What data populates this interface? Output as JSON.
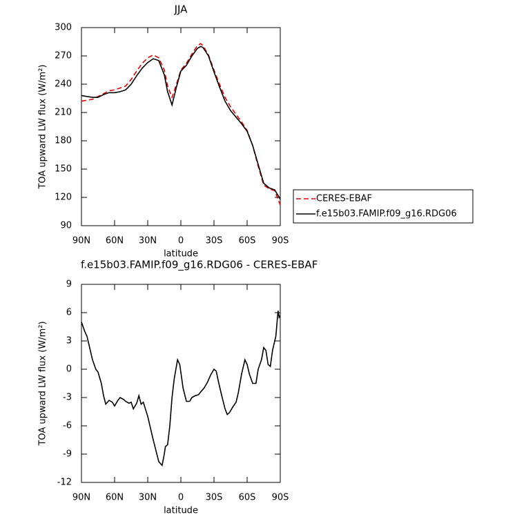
{
  "chart_data": [
    {
      "type": "line",
      "title": "JJA",
      "xlabel": "latitude",
      "ylabel": "TOA upward LW flux (W/m²)",
      "x": [
        90,
        85,
        80,
        75,
        70,
        65,
        60,
        55,
        50,
        45,
        40,
        35,
        30,
        25,
        20,
        15,
        12,
        8,
        4,
        0,
        -5,
        -10,
        -15,
        -18,
        -20,
        -25,
        -30,
        -35,
        -40,
        -45,
        -50,
        -55,
        -60,
        -65,
        -70,
        -75,
        -80,
        -85,
        -90
      ],
      "xlim": [
        90,
        -90
      ],
      "xticks": [
        {
          "value": 90,
          "label": "90N"
        },
        {
          "value": 60,
          "label": "60N"
        },
        {
          "value": 30,
          "label": "30N"
        },
        0,
        {
          "value": -30,
          "label": "30S"
        },
        {
          "value": -60,
          "label": "60S"
        },
        {
          "value": -90,
          "label": "90S"
        }
      ],
      "ylim": [
        90,
        300
      ],
      "yticks": [
        90,
        120,
        150,
        180,
        210,
        240,
        270,
        300
      ],
      "legend": "right",
      "series": [
        {
          "name": "CERES-EBAF",
          "color": "#e00000",
          "dash": true,
          "values": [
            222,
            223,
            224,
            227,
            230,
            233,
            234,
            236,
            238,
            245,
            254,
            262,
            268,
            271,
            268,
            255,
            238,
            226,
            240,
            255,
            262,
            272,
            281,
            283,
            281,
            271,
            255,
            240,
            226,
            216,
            208,
            200,
            191,
            175,
            153,
            133,
            129,
            127,
            112
          ]
        },
        {
          "name": "f.e15b03.FAMIP.f09_g16.RDG06",
          "color": "#000000",
          "dash": false,
          "values": [
            228,
            227,
            226,
            226,
            229,
            231,
            231,
            232,
            234,
            240,
            249,
            257,
            263,
            267,
            265,
            250,
            232,
            218,
            237,
            254,
            260,
            270,
            278,
            280,
            279,
            270,
            253,
            237,
            222,
            212,
            205,
            198,
            190,
            175,
            155,
            135,
            130,
            128,
            118
          ]
        }
      ]
    },
    {
      "type": "line",
      "title": "f.e15b03.FAMIP.f09_g16.RDG06 - CERES-EBAF",
      "xlabel": "latitude",
      "ylabel": "TOA upward LW flux (W/m²)",
      "x": [
        90,
        87,
        85,
        82,
        80,
        77,
        75,
        72,
        70,
        68,
        65,
        62,
        60,
        57,
        55,
        52,
        50,
        47,
        45,
        43,
        40,
        38,
        36,
        34,
        30,
        25,
        20,
        17,
        15,
        14,
        12,
        10,
        8,
        6,
        3,
        1,
        -2,
        -5,
        -8,
        -10,
        -13,
        -16,
        -18,
        -21,
        -24,
        -27,
        -30,
        -32,
        -34,
        -37,
        -40,
        -42,
        -44,
        -47,
        -50,
        -52,
        -55,
        -58,
        -60,
        -62,
        -65,
        -68,
        -70,
        -73,
        -75,
        -77,
        -79,
        -81,
        -83,
        -86,
        -88,
        -89,
        -90
      ],
      "xlim": [
        90,
        -90
      ],
      "xticks": [
        {
          "value": 90,
          "label": "90N"
        },
        {
          "value": 60,
          "label": "60N"
        },
        {
          "value": 30,
          "label": "30N"
        },
        0,
        {
          "value": -30,
          "label": "30S"
        },
        {
          "value": -60,
          "label": "60S"
        },
        {
          "value": -90,
          "label": "90S"
        }
      ],
      "ylim": [
        -12,
        9
      ],
      "yticks": [
        -12,
        -9,
        -6,
        -3,
        0,
        3,
        6,
        9
      ],
      "color": "#000000",
      "values": [
        5,
        4,
        3.5,
        2,
        1,
        0,
        -0.3,
        -1.5,
        -2.8,
        -3.7,
        -3.3,
        -3.5,
        -3.9,
        -3.3,
        -3,
        -3.2,
        -3.4,
        -3.6,
        -3.5,
        -4.2,
        -3.6,
        -2.8,
        -3.7,
        -3.5,
        -5,
        -7.5,
        -9.8,
        -10.2,
        -9,
        -8.2,
        -8,
        -6,
        -3,
        -1,
        1,
        0.5,
        -2,
        -3.4,
        -3.4,
        -3,
        -2.8,
        -2.7,
        -2.4,
        -2,
        -1.4,
        -0.6,
        0,
        -0.2,
        -1.3,
        -2.8,
        -4.2,
        -4.8,
        -4.6,
        -4,
        -3.5,
        -2.5,
        -0.5,
        1,
        0.5,
        -0.5,
        -1.5,
        -1.5,
        0,
        1,
        2.3,
        2,
        0.5,
        0.3,
        2,
        3.5,
        6.2,
        5.5,
        5.7
      ]
    }
  ]
}
